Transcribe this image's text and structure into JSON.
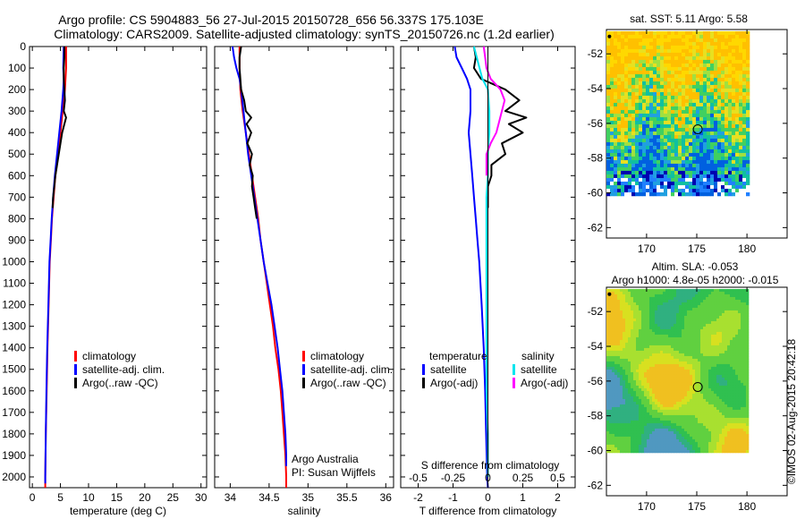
{
  "title_line1": "Argo profile: CS 5904883_56 27-Jul-2015 20150728_656 56.337S 175.103E",
  "title_line2": "Climatology: CARS2009. Satellite-adjusted climatology: synTS_20150726.nc (1.2d earlier)",
  "side_stamp": "©IMOS 02-Aug-2015 20:42:18",
  "colors": {
    "climatology": "#ff0000",
    "satellite": "#0000ff",
    "argo": "#000000",
    "sal_satellite": "#00e5ee",
    "sal_argo": "#ff00ff"
  },
  "chart_data": [
    {
      "type": "line",
      "xlabel": "temperature (deg C)",
      "ylabel": "",
      "xlim": [
        -0.5,
        31
      ],
      "ylim": [
        2050,
        0
      ],
      "xticks": [
        "0",
        "5",
        "10",
        "15",
        "20",
        "25",
        "30"
      ],
      "yticks": [
        "0",
        "100",
        "200",
        "300",
        "400",
        "500",
        "600",
        "700",
        "800",
        "900",
        "1000",
        "1100",
        "1200",
        "1300",
        "1400",
        "1500",
        "1600",
        "1700",
        "1800",
        "1900",
        "2000"
      ],
      "legend": [
        "climatology",
        "satellite-adj. clim.",
        "Argo(..raw -QC)"
      ],
      "series": [
        {
          "name": "climatology",
          "depth": [
            0,
            100,
            200,
            300,
            400,
            500,
            600,
            700,
            800,
            900,
            1000,
            1200,
            1400,
            1600,
            1800,
            2000,
            2050
          ],
          "values": [
            6.0,
            6.0,
            5.8,
            5.4,
            5.0,
            4.6,
            4.1,
            3.8,
            3.5,
            3.3,
            3.1,
            2.9,
            2.7,
            2.55,
            2.4,
            2.3,
            2.3
          ]
        },
        {
          "name": "satellite-adj. clim.",
          "depth": [
            0,
            100,
            150,
            200,
            300,
            400,
            500,
            600,
            700,
            800,
            900,
            1000,
            1200,
            1400,
            1600,
            1800,
            2000,
            2030
          ],
          "values": [
            5.6,
            5.5,
            5.6,
            5.5,
            5.2,
            4.8,
            4.4,
            4.0,
            3.7,
            3.45,
            3.25,
            3.05,
            2.85,
            2.65,
            2.5,
            2.4,
            2.3,
            2.3
          ]
        },
        {
          "name": "Argo(..raw -QC)",
          "depth": [
            0,
            50,
            100,
            150,
            200,
            250,
            300,
            330,
            360,
            400,
            450,
            500,
            550,
            600,
            650,
            700,
            750
          ],
          "values": [
            5.7,
            5.7,
            5.6,
            5.6,
            5.7,
            5.8,
            5.6,
            6.0,
            5.7,
            5.3,
            5.0,
            4.7,
            4.4,
            4.1,
            3.9,
            3.7,
            3.6
          ]
        }
      ]
    },
    {
      "type": "line",
      "xlabel": "salinity",
      "ylabel": "",
      "xlim": [
        33.8,
        36.1
      ],
      "ylim": [
        2050,
        0
      ],
      "xticks": [
        "34",
        "34.5",
        "35",
        "35.5",
        "36"
      ],
      "legend": [
        "climatology",
        "satellite-adj. clim.",
        "Argo(..raw -QC)"
      ],
      "annotation": [
        "Argo Australia",
        "PI: Susan Wijffels"
      ],
      "series": [
        {
          "name": "climatology",
          "depth": [
            0,
            100,
            200,
            300,
            400,
            500,
            600,
            700,
            800,
            900,
            1000,
            1100,
            1200,
            1300,
            1400,
            1500,
            1600,
            1700,
            1800,
            1900,
            2000,
            2050
          ],
          "values": [
            34.12,
            34.12,
            34.13,
            34.16,
            34.2,
            34.24,
            34.28,
            34.32,
            34.36,
            34.39,
            34.43,
            34.47,
            34.51,
            34.55,
            34.58,
            34.62,
            34.65,
            34.67,
            34.69,
            34.71,
            34.72,
            34.72
          ]
        },
        {
          "name": "satellite-adj. clim.",
          "depth": [
            0,
            50,
            100,
            150,
            200,
            300,
            400,
            500,
            600,
            700,
            800,
            900,
            1000,
            1100,
            1200,
            1300,
            1400,
            1500,
            1600,
            1700,
            1800,
            1900,
            1950
          ],
          "values": [
            34.03,
            34.05,
            34.08,
            34.12,
            34.14,
            34.17,
            34.2,
            34.23,
            34.27,
            34.31,
            34.35,
            34.39,
            34.43,
            34.48,
            34.53,
            34.57,
            34.61,
            34.64,
            34.67,
            34.69,
            34.71,
            34.72,
            34.72
          ]
        },
        {
          "name": "Argo(..raw -QC)",
          "depth": [
            0,
            50,
            100,
            150,
            200,
            250,
            300,
            330,
            360,
            400,
            450,
            500,
            550,
            600,
            650,
            700,
            750,
            800
          ],
          "values": [
            34.14,
            34.12,
            34.12,
            34.13,
            34.14,
            34.18,
            34.2,
            34.27,
            34.21,
            34.27,
            34.22,
            34.28,
            34.25,
            34.29,
            34.28,
            34.3,
            34.32,
            34.34
          ]
        }
      ]
    },
    {
      "type": "line",
      "xlabel": "T difference from climatology",
      "xlabel_top": "S difference from climatology",
      "xlim": [
        -2.5,
        2.5
      ],
      "ylim": [
        2050,
        0
      ],
      "xticks": [
        "-2",
        "-1",
        "0",
        "1",
        "2"
      ],
      "xticks_top": [
        "-0.5",
        "-0.25",
        "0",
        "0.25",
        "0.5"
      ],
      "legend_temperature": {
        "title": "temperature",
        "items": [
          "satellite",
          "Argo(-adj)"
        ]
      },
      "legend_salinity": {
        "title": "salinity",
        "items": [
          "satellite",
          "Argo(-adj)"
        ]
      },
      "series": [
        {
          "name": "T satellite",
          "depth": [
            0,
            50,
            100,
            150,
            200,
            300,
            400,
            500,
            600,
            700,
            800,
            900,
            1000,
            1200,
            1400,
            1600,
            1800,
            2000,
            2050
          ],
          "values": [
            -0.95,
            -0.9,
            -0.75,
            -0.6,
            -0.5,
            -0.5,
            -0.55,
            -0.5,
            -0.45,
            -0.4,
            -0.35,
            -0.3,
            -0.25,
            -0.18,
            -0.12,
            -0.08,
            -0.05,
            -0.02,
            0.0
          ]
        },
        {
          "name": "T Argo(-adj)",
          "depth": [
            0,
            50,
            100,
            150,
            200,
            250,
            300,
            330,
            360,
            400,
            450,
            500,
            550,
            600,
            650,
            700,
            750
          ],
          "values": [
            -0.4,
            -0.35,
            -0.4,
            -0.2,
            0.5,
            0.9,
            0.5,
            1.1,
            0.6,
            1.0,
            0.4,
            0.5,
            0.1,
            0.1,
            0.0,
            0.0,
            0.0
          ]
        },
        {
          "name": "S satellite",
          "depth": [
            0,
            50,
            100,
            150,
            200,
            300,
            400,
            500,
            600,
            700,
            800,
            1000,
            1200,
            1400,
            1600,
            1800,
            2000
          ],
          "values": [
            -0.1,
            -0.08,
            -0.06,
            -0.04,
            0.0,
            0.01,
            0.01,
            0.0,
            0.0,
            -0.01,
            -0.01,
            -0.01,
            -0.01,
            -0.01,
            -0.01,
            0.0,
            0.0
          ]
        },
        {
          "name": "S Argo(-adj)",
          "depth": [
            0,
            50,
            100,
            150,
            200,
            250,
            300,
            350,
            400,
            450,
            500,
            550,
            600
          ],
          "values": [
            -0.03,
            -0.02,
            -0.01,
            0.02,
            0.09,
            0.12,
            0.1,
            0.08,
            0.06,
            0.02,
            -0.01,
            -0.01,
            -0.01
          ]
        }
      ]
    },
    {
      "type": "heatmap",
      "title": "sat. SST: 5.11  Argo: 5.58",
      "xlim": [
        166,
        184
      ],
      "ylim": [
        -62.6,
        -50.6
      ],
      "xticks": [
        "170",
        "175",
        "180"
      ],
      "yticks": [
        "-52",
        "-54",
        "-56",
        "-58",
        "-60",
        "-62"
      ],
      "data_extent": {
        "lon": [
          166,
          180
        ],
        "lat": [
          -60,
          -50.7
        ]
      },
      "marker": {
        "lon": 175.1,
        "lat": -56.34
      }
    },
    {
      "type": "heatmap",
      "title_lines": [
        "Altim. SLA: -0.053",
        "Argo h1000: 4.8e-05 h2000: -0.015"
      ],
      "xlim": [
        166,
        184
      ],
      "ylim": [
        -62.6,
        -50.6
      ],
      "xticks": [
        "170",
        "175",
        "180"
      ],
      "yticks": [
        "-52",
        "-54",
        "-56",
        "-58",
        "-60",
        "-62"
      ],
      "data_extent": {
        "lon": [
          166,
          180
        ],
        "lat": [
          -60,
          -50.7
        ]
      },
      "marker": {
        "lon": 175.1,
        "lat": -56.34
      }
    }
  ]
}
